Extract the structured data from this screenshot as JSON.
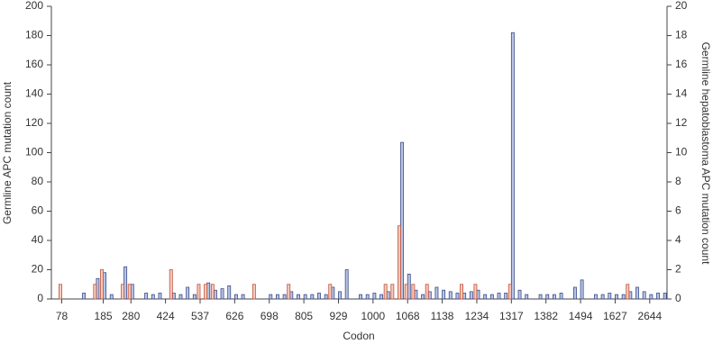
{
  "chart_data": {
    "type": "bar",
    "xlabel": "Codon",
    "ylabel": "Germline APC mutation count",
    "y2label": "Germline hepatoblastoma APC mutation count",
    "categories": [
      null,
      "78",
      null,
      null,
      null,
      null,
      null,
      "185",
      null,
      null,
      null,
      "280",
      null,
      null,
      null,
      null,
      "424",
      null,
      null,
      null,
      null,
      "537",
      null,
      null,
      null,
      null,
      "626",
      null,
      null,
      null,
      null,
      "698",
      null,
      null,
      null,
      null,
      "805",
      null,
      null,
      null,
      null,
      "929",
      null,
      null,
      null,
      null,
      "1000",
      null,
      null,
      null,
      null,
      "1068",
      null,
      null,
      null,
      null,
      "1138",
      null,
      null,
      null,
      null,
      "1234",
      null,
      null,
      null,
      null,
      "1317",
      null,
      null,
      null,
      null,
      "1382",
      null,
      null,
      null,
      null,
      "1494",
      null,
      null,
      null,
      null,
      "1627",
      null,
      null,
      null,
      null,
      "2644",
      null,
      null
    ],
    "series": [
      {
        "color": "#b9c5e3",
        "stroke": "#3b4b8c",
        "values": [
          0,
          0,
          0,
          0,
          4,
          0,
          14,
          18,
          3,
          0,
          22,
          10,
          0,
          4,
          3,
          4,
          0,
          4,
          3,
          8,
          3,
          0,
          11,
          6,
          7,
          9,
          3,
          3,
          0,
          0,
          0,
          3,
          3,
          3,
          5,
          3,
          3,
          3,
          4,
          3,
          8,
          5,
          20,
          0,
          3,
          3,
          4,
          3,
          5,
          0,
          107,
          17,
          6,
          3,
          5,
          8,
          6,
          5,
          4,
          4,
          5,
          6,
          3,
          3,
          4,
          4,
          182,
          6,
          3,
          0,
          3,
          3,
          3,
          4,
          0,
          8,
          13,
          0,
          3,
          3,
          4,
          3,
          3,
          5,
          8,
          5,
          3,
          4,
          4
        ]
      },
      {
        "color": "#f5cbbb",
        "stroke": "#c0513b",
        "axis": "y2",
        "values": [
          0,
          1,
          0,
          0,
          0,
          0,
          1,
          2,
          0,
          0,
          1,
          1,
          0,
          0,
          0,
          0,
          0,
          2,
          0,
          0,
          0,
          1,
          1,
          1,
          0,
          0,
          0,
          0,
          0,
          1,
          0,
          0,
          0,
          0,
          1,
          0,
          0,
          0,
          0,
          0,
          1,
          0,
          0,
          0,
          0,
          0,
          0,
          0,
          1,
          1,
          5,
          1,
          1,
          0,
          1,
          0,
          0,
          0,
          0,
          1,
          0,
          1,
          0,
          0,
          0,
          0,
          1,
          0,
          0,
          0,
          0,
          0,
          0,
          0,
          0,
          0,
          0,
          0,
          0,
          0,
          0,
          0,
          0,
          1,
          0,
          0,
          0,
          0,
          0
        ]
      }
    ],
    "ylim": [
      0,
      200
    ],
    "yticks": [
      0,
      20,
      40,
      60,
      80,
      100,
      120,
      140,
      160,
      180,
      200
    ],
    "y2lim": [
      0,
      20
    ],
    "y2ticks": [
      0,
      2,
      4,
      6,
      8,
      10,
      12,
      14,
      16,
      18,
      20
    ]
  }
}
